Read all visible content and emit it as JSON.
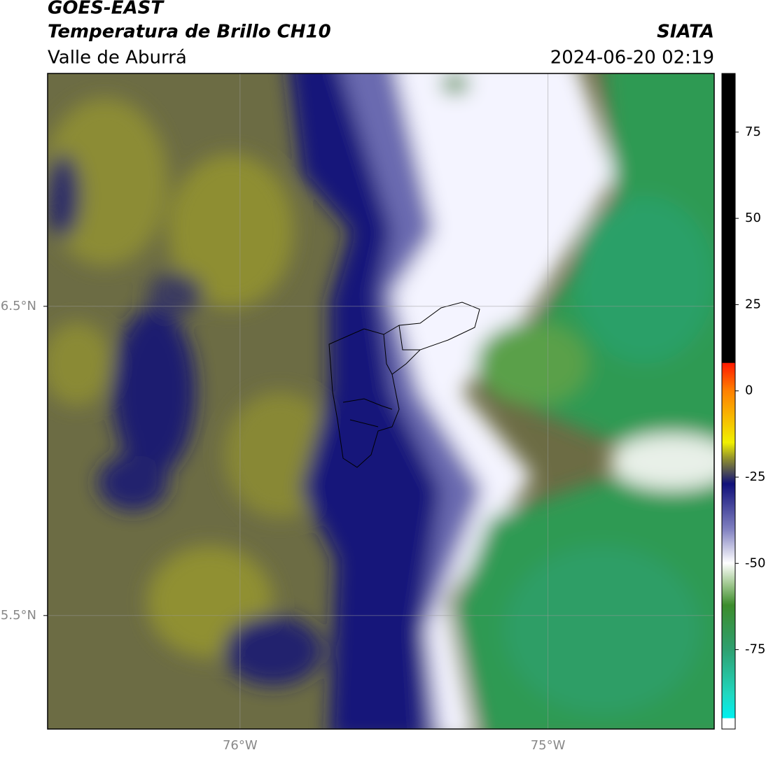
{
  "header": {
    "title": "GOES-EAST",
    "subtitle": "Temperatura de Brillo CH10",
    "region": "Valle de Aburrá",
    "source": "SIATA",
    "datetime": "2024-06-20 02:19"
  },
  "chart_data": {
    "type": "map",
    "xlim": [
      -76.625,
      -74.46
    ],
    "ylim": [
      5.133,
      7.253
    ],
    "xticks": [
      {
        "value": -76,
        "label": "76°W"
      },
      {
        "value": -75,
        "label": "75°W"
      }
    ],
    "yticks": [
      {
        "value": 5.5,
        "label": "5.5°N"
      },
      {
        "value": 6.5,
        "label": "6.5°N"
      }
    ],
    "grid": true,
    "colorbar": {
      "lim": [
        -98,
        92
      ],
      "ticks": [
        75,
        50,
        25,
        0,
        -25,
        -50,
        -75
      ]
    }
  }
}
